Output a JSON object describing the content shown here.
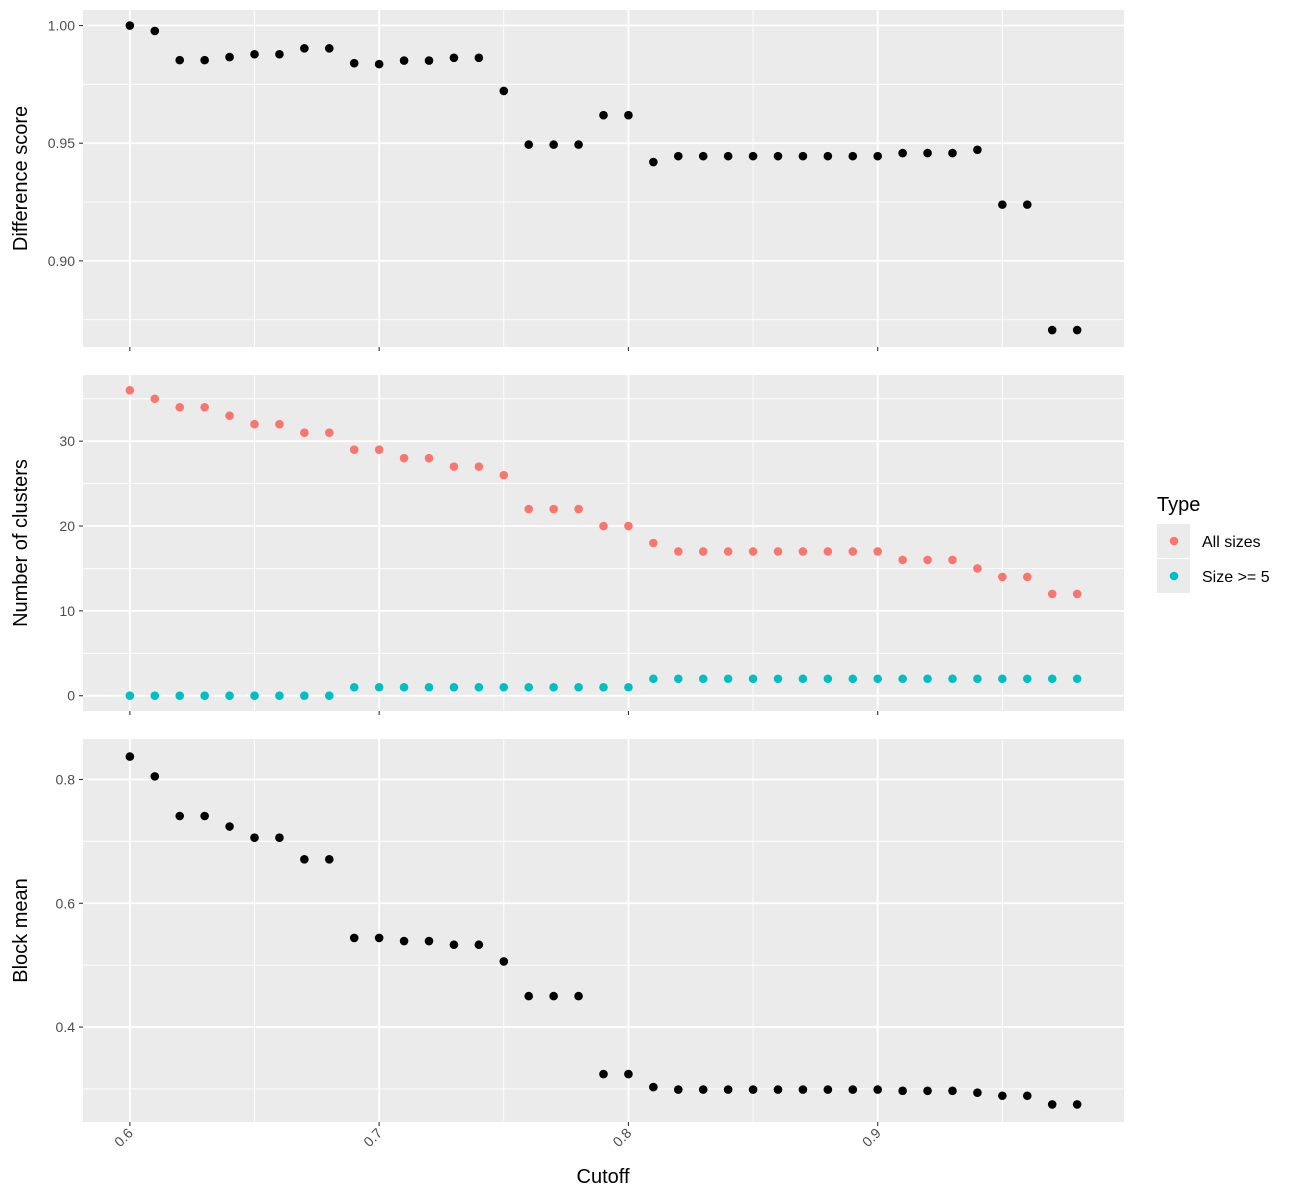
{
  "chart_data": {
    "type": "scatter",
    "xlabel": "Cutoff",
    "xlim": [
      0.5812,
      0.9988
    ],
    "x_ticks": [
      0.6,
      0.7,
      0.8,
      0.9
    ],
    "x_tick_labels": [
      "0.6",
      "0.7",
      "0.8",
      "0.9"
    ],
    "x_minor_ticks": [
      0.65,
      0.75,
      0.85,
      0.95
    ],
    "x": [
      0.6,
      0.61,
      0.62,
      0.63,
      0.64,
      0.65,
      0.66,
      0.67,
      0.68,
      0.69,
      0.7,
      0.71,
      0.72,
      0.73,
      0.74,
      0.75,
      0.76,
      0.77,
      0.78,
      0.79,
      0.8,
      0.81,
      0.82,
      0.83,
      0.84,
      0.85,
      0.86,
      0.87,
      0.88,
      0.89,
      0.9,
      0.91,
      0.92,
      0.93,
      0.94,
      0.95,
      0.96,
      0.97,
      0.98
    ],
    "grid": true,
    "panel_background": "#ebebeb",
    "grid_color": "#ffffff",
    "panels": [
      {
        "ylabel": "Difference score",
        "ylim": [
          0.8634,
          1.0066
        ],
        "y_ticks": [
          0.9,
          0.95,
          1.0
        ],
        "y_tick_labels": [
          "0.90",
          "0.95",
          "1.00"
        ],
        "y_minor_ticks": [
          0.875,
          0.925,
          0.975
        ],
        "series": [
          {
            "color": "#000000",
            "values": [
              1.0,
              0.9977,
              0.9853,
              0.9853,
              0.9866,
              0.9878,
              0.9878,
              0.9903,
              0.9903,
              0.984,
              0.9836,
              0.9851,
              0.9851,
              0.9863,
              0.9863,
              0.9722,
              0.9494,
              0.9494,
              0.9494,
              0.9619,
              0.9619,
              0.942,
              0.9445,
              0.9445,
              0.9445,
              0.9445,
              0.9445,
              0.9445,
              0.9445,
              0.9445,
              0.9445,
              0.9458,
              0.9458,
              0.9458,
              0.9472,
              0.9239,
              0.9239,
              0.8706,
              0.8706
            ]
          }
        ]
      },
      {
        "ylabel": "Number of clusters",
        "ylim": [
          -1.8,
          37.8
        ],
        "y_ticks": [
          0,
          10,
          20,
          30
        ],
        "y_tick_labels": [
          "0",
          "10",
          "20",
          "30"
        ],
        "y_minor_ticks": [
          5,
          15,
          25,
          35
        ],
        "series": [
          {
            "name": "All sizes",
            "color": "#f8766d",
            "values": [
              36,
              35,
              34,
              34,
              33,
              32,
              32,
              31,
              31,
              29,
              29,
              28,
              28,
              27,
              27,
              26,
              22,
              22,
              22,
              20,
              20,
              18,
              17,
              17,
              17,
              17,
              17,
              17,
              17,
              17,
              17,
              16,
              16,
              16,
              15,
              14,
              14,
              12,
              12
            ]
          },
          {
            "name": "Size >= 5",
            "color": "#00bfc4",
            "values": [
              0,
              0,
              0,
              0,
              0,
              0,
              0,
              0,
              0,
              1,
              1,
              1,
              1,
              1,
              1,
              1,
              1,
              1,
              1,
              1,
              1,
              2,
              2,
              2,
              2,
              2,
              2,
              2,
              2,
              2,
              2,
              2,
              2,
              2,
              2,
              2,
              2,
              2,
              2
            ]
          }
        ]
      },
      {
        "ylabel": "Block mean",
        "ylim": [
          0.2466,
          0.8654
        ],
        "y_ticks": [
          0.4,
          0.6,
          0.8
        ],
        "y_tick_labels": [
          "0.4",
          "0.6",
          "0.8"
        ],
        "y_minor_ticks": [
          0.3,
          0.5,
          0.7
        ],
        "series": [
          {
            "color": "#000000",
            "values": [
              0.837,
              0.805,
              0.741,
              0.741,
              0.724,
              0.706,
              0.706,
              0.671,
              0.671,
              0.544,
              0.544,
              0.539,
              0.539,
              0.533,
              0.533,
              0.506,
              0.45,
              0.45,
              0.45,
              0.324,
              0.324,
              0.303,
              0.299,
              0.299,
              0.299,
              0.299,
              0.299,
              0.299,
              0.299,
              0.299,
              0.299,
              0.297,
              0.297,
              0.297,
              0.294,
              0.289,
              0.289,
              0.275,
              0.275
            ]
          }
        ]
      }
    ],
    "legend": {
      "title": "Type",
      "position": "right",
      "entries": [
        {
          "label": "All sizes",
          "color": "#f8766d"
        },
        {
          "label": "Size >= 5",
          "color": "#00bfc4"
        }
      ]
    }
  }
}
